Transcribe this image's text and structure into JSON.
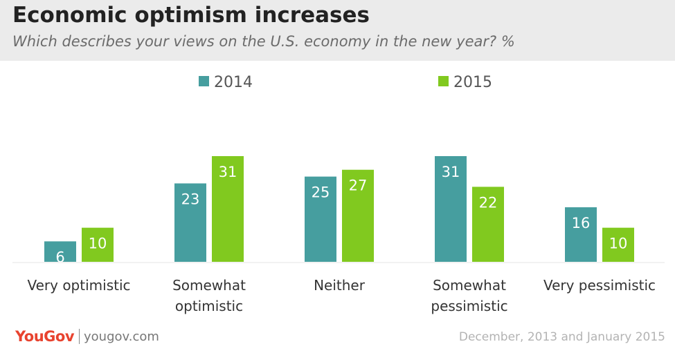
{
  "header": {
    "title": "Economic optimism increases",
    "subtitle": "Which describes your views on the U.S. economy in the new year? %"
  },
  "chart_data": {
    "type": "bar",
    "categories": [
      [
        "Very optimistic"
      ],
      [
        "Somewhat",
        "optimistic"
      ],
      [
        "Neither"
      ],
      [
        "Somewhat",
        "pessimistic"
      ],
      [
        "Very pessimistic"
      ]
    ],
    "series": [
      {
        "name": "2014",
        "values": [
          6,
          23,
          25,
          31,
          16
        ],
        "color": "#469e9f"
      },
      {
        "name": "2015",
        "values": [
          10,
          31,
          27,
          22,
          10
        ],
        "color": "#81c91f"
      }
    ],
    "legend_position": "top-center",
    "ylim": [
      0,
      31
    ],
    "grid": false
  },
  "footer": {
    "logo": "YouGov",
    "site": "yougov.com",
    "date_note": "December, 2013 and January 2015"
  }
}
